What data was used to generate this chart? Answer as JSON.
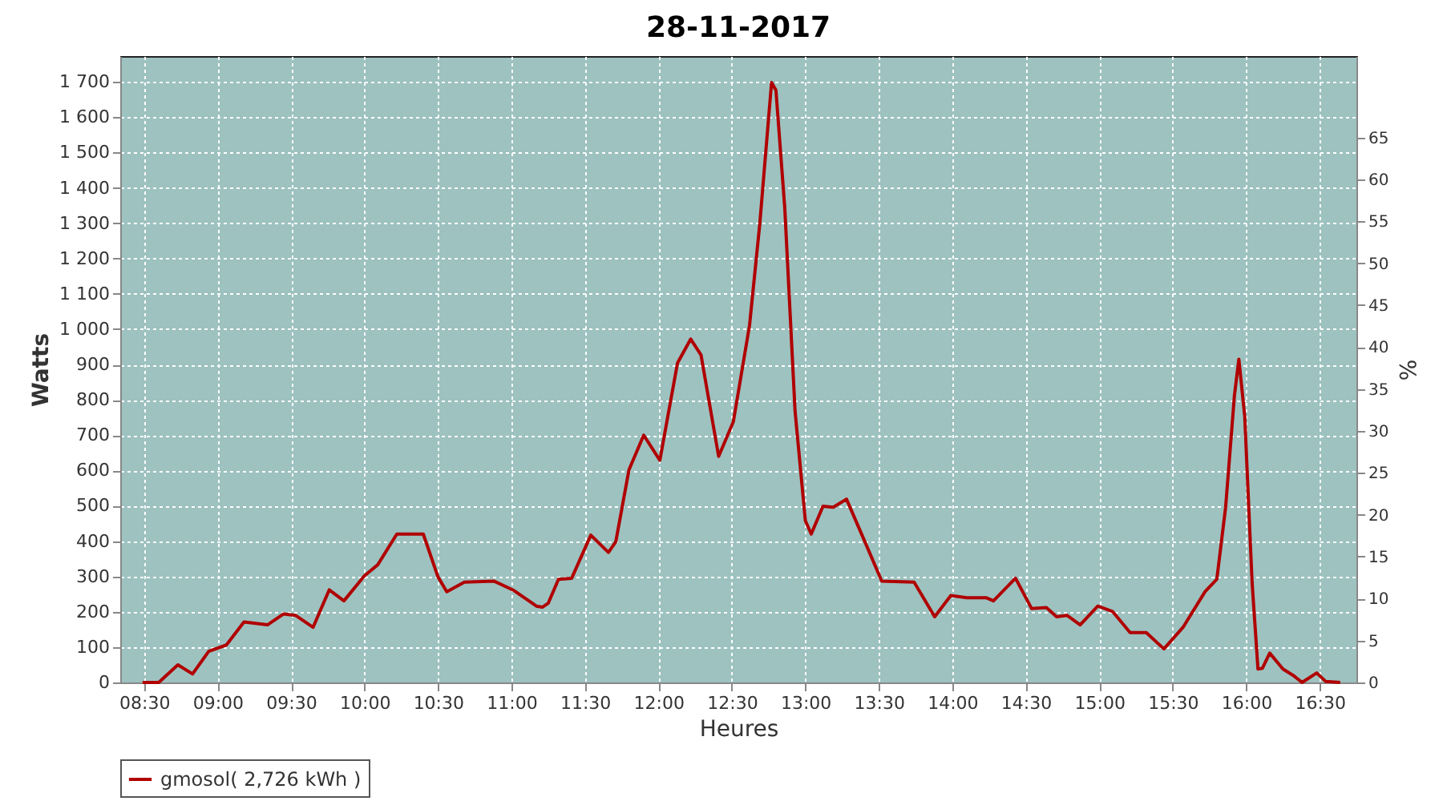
{
  "chart_data": {
    "type": "line",
    "title": "28-11-2017",
    "xlabel": "Heures",
    "ylabel": "Watts",
    "y2label": "%",
    "xlim": [
      8.338,
      16.75
    ],
    "ylim": [
      0,
      1773
    ],
    "y2lim": [
      0,
      74.7
    ],
    "xticks": [
      {
        "value": 8.5,
        "label": "08:30"
      },
      {
        "value": 9,
        "label": "09:00"
      },
      {
        "value": 9.5,
        "label": "09:30"
      },
      {
        "value": 10,
        "label": "10:00"
      },
      {
        "value": 10.5,
        "label": "10:30"
      },
      {
        "value": 11,
        "label": "11:00"
      },
      {
        "value": 11.5,
        "label": "11:30"
      },
      {
        "value": 12,
        "label": "12:00"
      },
      {
        "value": 12.5,
        "label": "12:30"
      },
      {
        "value": 13,
        "label": "13:00"
      },
      {
        "value": 13.5,
        "label": "13:30"
      },
      {
        "value": 14,
        "label": "14:00"
      },
      {
        "value": 14.5,
        "label": "14:30"
      },
      {
        "value": 15,
        "label": "15:00"
      },
      {
        "value": 15.5,
        "label": "15:30"
      },
      {
        "value": 16,
        "label": "16:00"
      },
      {
        "value": 16.5,
        "label": "16:30"
      }
    ],
    "yticks": [
      0,
      100,
      200,
      300,
      400,
      500,
      600,
      700,
      800,
      900,
      {
        "value": 1000,
        "label": "1 000"
      },
      {
        "value": 1100,
        "label": "1 100"
      },
      {
        "value": 1200,
        "label": "1 200"
      },
      {
        "value": 1300,
        "label": "1 300"
      },
      {
        "value": 1400,
        "label": "1 400"
      },
      {
        "value": 1500,
        "label": "1 500"
      },
      {
        "value": 1600,
        "label": "1 600"
      },
      {
        "value": 1700,
        "label": "1 700"
      }
    ],
    "y2ticks": [
      0,
      5,
      10,
      15,
      20,
      25,
      30,
      35,
      40,
      45,
      50,
      55,
      60,
      65
    ],
    "grid": true,
    "legend": "bottom",
    "marker": "none",
    "line_style": "solid",
    "series": [
      {
        "name": "gmosol( 2,726 kWh )",
        "color": "#b00000",
        "x": [
          8.49,
          8.6,
          8.73,
          8.83,
          8.94,
          9.06,
          9.18,
          9.34,
          9.45,
          9.53,
          9.65,
          9.76,
          9.86,
          10.0,
          10.09,
          10.22,
          10.4,
          10.5,
          10.56,
          10.68,
          10.88,
          11.01,
          11.17,
          11.21,
          11.25,
          11.32,
          11.41,
          11.54,
          11.66,
          11.71,
          11.8,
          11.9,
          12.01,
          12.13,
          12.22,
          12.29,
          12.41,
          12.51,
          12.62,
          12.69,
          12.77,
          12.8,
          12.86,
          12.93,
          13.0,
          13.04,
          13.12,
          13.19,
          13.28,
          13.39,
          13.52,
          13.74,
          13.88,
          13.99,
          14.1,
          14.23,
          14.28,
          14.43,
          14.54,
          14.64,
          14.71,
          14.78,
          14.87,
          14.99,
          15.09,
          15.21,
          15.32,
          15.44,
          15.57,
          15.72,
          15.8,
          15.86,
          15.92,
          15.95,
          15.99,
          16.04,
          16.08,
          16.11,
          16.16,
          16.25,
          16.32,
          16.38,
          16.48,
          16.54,
          16.64
        ],
        "values": [
          0,
          0,
          50,
          24,
          88,
          106,
          171,
          163,
          194,
          190,
          156,
          262,
          231,
          302,
          333,
          420,
          420,
          299,
          257,
          284,
          287,
          262,
          216,
          213,
          224,
          292,
          295,
          417,
          368,
          398,
          602,
          700,
          629,
          904,
          972,
          927,
          640,
          738,
          1010,
          1298,
          1698,
          1676,
          1343,
          768,
          458,
          420,
          499,
          496,
          519,
          413,
          287,
          284,
          186,
          246,
          240,
          240,
          231,
          295,
          209,
          212,
          186,
          190,
          163,
          216,
          201,
          141,
          141,
          95,
          156,
          257,
          292,
          496,
          813,
          915,
          753,
          284,
          38,
          40,
          83,
          38,
          20,
          0,
          27,
          3,
          0
        ]
      }
    ]
  }
}
